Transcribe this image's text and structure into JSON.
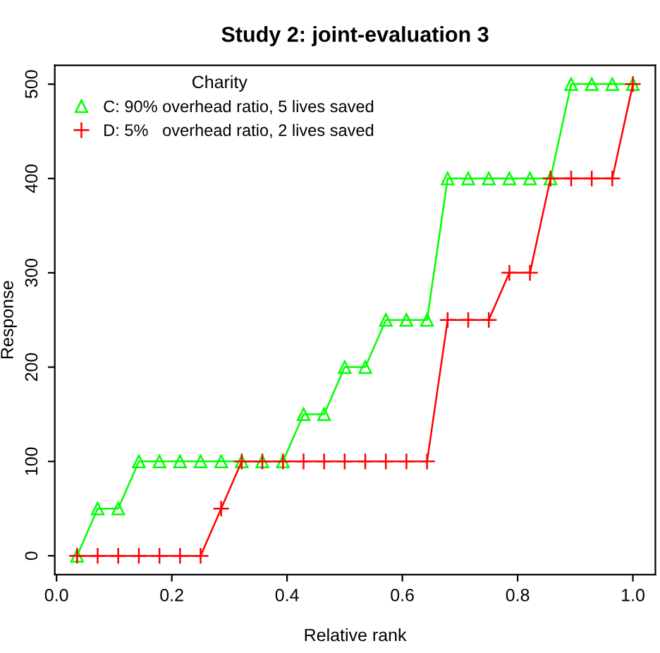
{
  "chart_data": {
    "type": "line",
    "title": "Study 2: joint-evaluation 3",
    "xlabel": "Relative rank",
    "ylabel": "Response",
    "legend_title": "Charity",
    "legend": "top left",
    "grid": false,
    "x": [
      0.0357,
      0.0714,
      0.1071,
      0.1429,
      0.1786,
      0.2143,
      0.25,
      0.2857,
      0.3214,
      0.3571,
      0.3929,
      0.4286,
      0.4643,
      0.5,
      0.5357,
      0.5714,
      0.6071,
      0.6429,
      0.6786,
      0.7143,
      0.75,
      0.7857,
      0.8214,
      0.8571,
      0.8929,
      0.9286,
      0.9643,
      1.0
    ],
    "series": [
      {
        "name": "C: 90% overhead ratio, 5 lives saved",
        "color": "#00ff00",
        "marker": "triangle",
        "values": [
          0,
          50,
          50,
          100,
          100,
          100,
          100,
          100,
          100,
          100,
          100,
          150,
          150,
          200,
          200,
          250,
          250,
          250,
          400,
          400,
          400,
          400,
          400,
          400,
          500,
          500,
          500,
          500
        ]
      },
      {
        "name": "D: 5%   overhead ratio, 2 lives saved",
        "color": "#ff0000",
        "marker": "cross",
        "values": [
          0,
          0,
          0,
          0,
          0,
          0,
          0,
          50,
          100,
          100,
          100,
          100,
          100,
          100,
          100,
          100,
          100,
          100,
          250,
          250,
          250,
          300,
          300,
          400,
          400,
          400,
          400,
          500
        ]
      }
    ],
    "xlim": [
      -0.003,
      1.039
    ],
    "ylim": [
      -20,
      520
    ],
    "xticks": [
      {
        "value": 0,
        "label": "0.0"
      },
      0.2,
      0.4,
      0.6,
      0.8,
      {
        "value": 1,
        "label": "1.0"
      }
    ],
    "yticks": [
      0,
      100,
      200,
      300,
      400,
      500
    ]
  }
}
